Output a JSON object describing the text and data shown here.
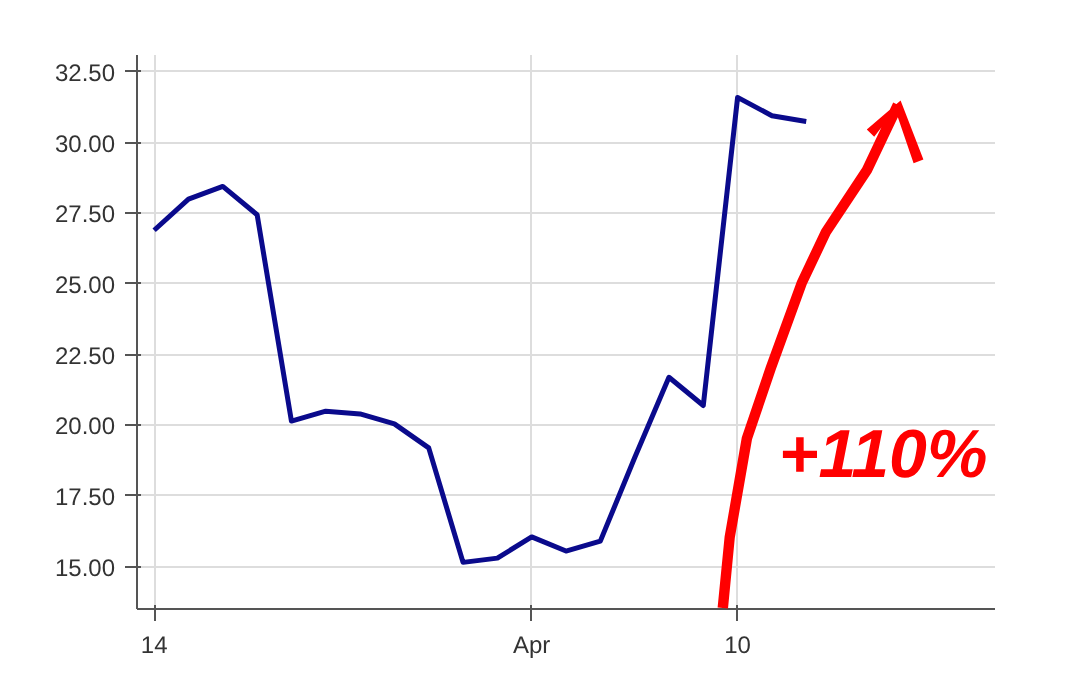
{
  "chart_data": {
    "type": "line",
    "categories": [
      "14",
      null,
      null,
      null,
      null,
      null,
      null,
      null,
      null,
      null,
      null,
      "Apr",
      null,
      null,
      null,
      null,
      null,
      "10",
      null,
      null
    ],
    "series": [
      {
        "color": "#0a0a8c",
        "values": [
          26.9,
          28.0,
          28.45,
          27.45,
          20.15,
          20.5,
          20.4,
          20.05,
          19.2,
          15.15,
          15.3,
          16.05,
          15.55,
          15.9,
          18.85,
          21.7,
          20.7,
          31.6,
          30.95,
          30.75
        ]
      }
    ],
    "ylim": [
      13.5,
      33.1
    ],
    "yticks": [
      {
        "value": 15,
        "label": "15.00"
      },
      {
        "value": 17.5,
        "label": "17.50"
      },
      {
        "value": 20,
        "label": "20.00"
      },
      {
        "value": 22.5,
        "label": "22.50"
      },
      {
        "value": 25,
        "label": "25.00"
      },
      {
        "value": 27.5,
        "label": "27.50"
      },
      {
        "value": 30,
        "label": "30.00"
      },
      {
        "value": 32.5,
        "label": "32.50"
      }
    ],
    "grid": true,
    "line_style": "solid",
    "annotations": [
      "+110%"
    ]
  }
}
